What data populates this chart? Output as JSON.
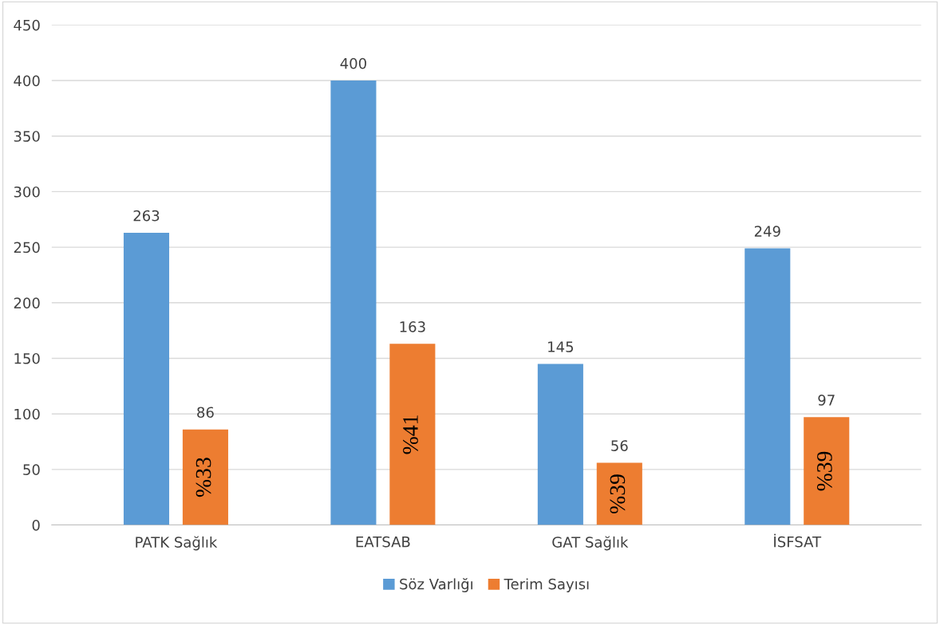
{
  "chart_data": {
    "type": "bar",
    "categories": [
      "PATK Sağlık",
      "EATSAB",
      "GAT Sağlık",
      "İSFSAT"
    ],
    "series": [
      {
        "name": "Söz Varlığı",
        "color": "#5b9bd5",
        "values": [
          263,
          400,
          145,
          249
        ]
      },
      {
        "name": "Terim Sayısı",
        "color": "#ed7d31",
        "values": [
          86,
          163,
          56,
          97
        ]
      }
    ],
    "ylim": [
      0,
      450
    ],
    "yticks": [
      0,
      50,
      100,
      150,
      200,
      250,
      300,
      350,
      400,
      450
    ],
    "grid": "y",
    "legend": "bottom",
    "data_labels": true,
    "annotations": [
      "%33",
      "%41",
      "%39",
      "%39"
    ]
  }
}
